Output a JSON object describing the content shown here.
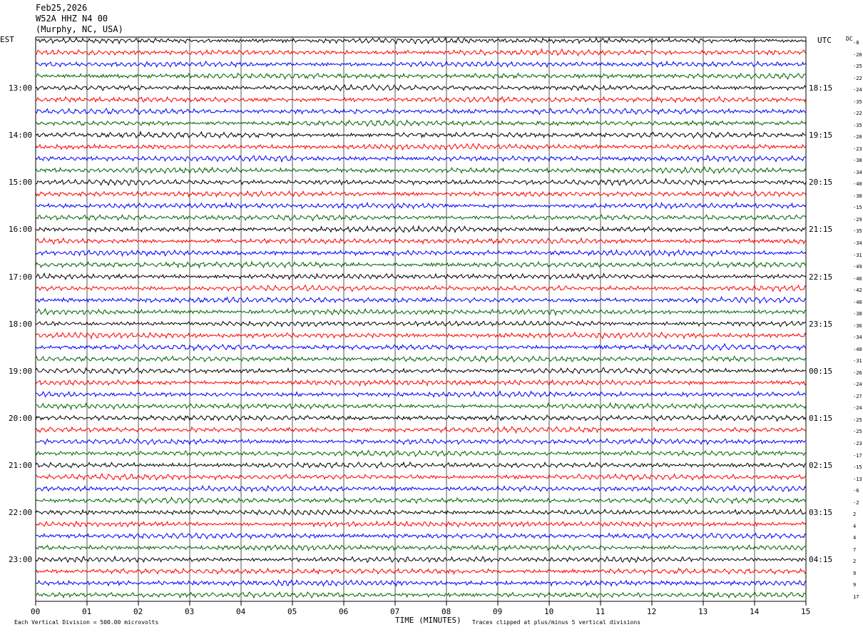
{
  "header": {
    "date": "Feb25,2026",
    "station": "W52A HHZ N4 00",
    "location": "(Murphy, NC, USA)"
  },
  "chart_data": {
    "type": "line",
    "title": "",
    "left_timezone": "EST",
    "right_timezone": "UTC",
    "dc_header": "DC",
    "xlabel": "TIME (MINUTES)",
    "x_ticks": [
      "00",
      "01",
      "02",
      "03",
      "04",
      "05",
      "06",
      "07",
      "08",
      "09",
      "10",
      "11",
      "12",
      "13",
      "14",
      "15"
    ],
    "xlim": [
      0,
      15
    ],
    "left_hour_labels": [
      "13:00",
      "14:00",
      "15:00",
      "16:00",
      "17:00",
      "18:00",
      "19:00",
      "20:00",
      "21:00",
      "22:00",
      "23:00"
    ],
    "right_hour_labels": [
      "18:15",
      "19:15",
      "20:15",
      "21:15",
      "22:15",
      "23:15",
      "00:15",
      "01:15",
      "02:15",
      "03:15",
      "04:15"
    ],
    "trace_colors": [
      "#000000",
      "#ff0000",
      "#0000ff",
      "#006400"
    ],
    "dc_offsets": [
      "-8",
      "-20",
      "-25",
      "-22",
      "-24",
      "-35",
      "-22",
      "-35",
      "-20",
      "-23",
      "-38",
      "-34",
      "-40",
      "-38",
      "-15",
      "-29",
      "-35",
      "-34",
      "-31",
      "-49",
      "-46",
      "-42",
      "-40",
      "-38",
      "-36",
      "-34",
      "-40",
      "-31",
      "-26",
      "-24",
      "-27",
      "-24",
      "-25",
      "-25",
      "-23",
      "-17",
      "-15",
      "-13",
      "-6",
      "-2",
      "2",
      "4",
      "4",
      "7",
      "2",
      "9",
      "9",
      "17"
    ],
    "footnote_left": "Each Vertical Division = 500.00 microvolts",
    "footnote_right": "Traces clipped at plus/minus 5 vertical divisions",
    "grid": true
  }
}
